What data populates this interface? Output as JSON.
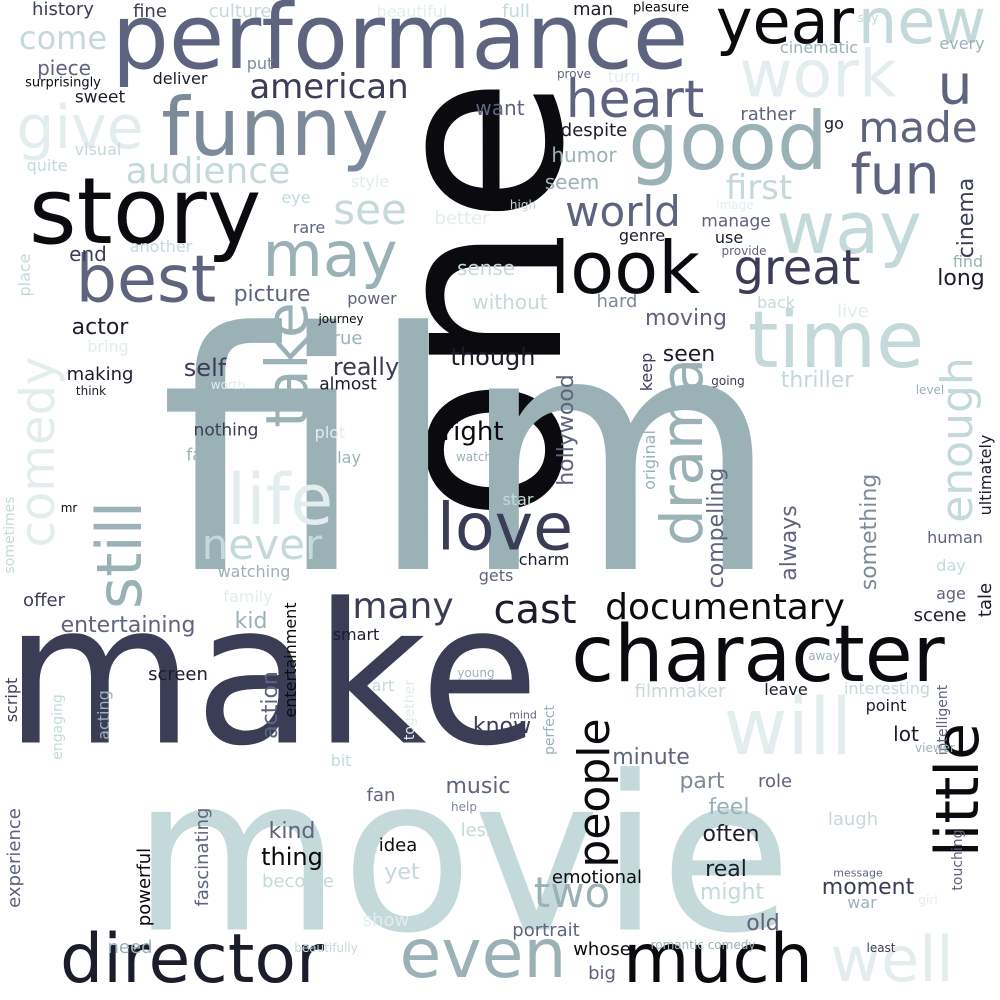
{
  "words": [
    "one",
    "film",
    "make",
    "movie",
    "performance",
    "character",
    "story",
    "funny",
    "best",
    "good",
    "way",
    "time",
    "look",
    "director",
    "much",
    "even",
    "well",
    "will",
    "little",
    "love",
    "drama",
    "life",
    "still",
    "take",
    "may",
    "give",
    "work",
    "new",
    "year",
    "u",
    "heart",
    "made",
    "fun",
    "great",
    "world",
    "documentary",
    "cast",
    "many",
    "people",
    "two",
    "comedy",
    "enough",
    "american",
    "audience",
    "come",
    "see",
    "first",
    "never",
    "right",
    "though",
    "actor",
    "self",
    "really",
    "picture",
    "moving",
    "seen",
    "thriller",
    "long",
    "cinema",
    "hollywood",
    "something",
    "compelling",
    "always",
    "entertaining",
    "kid",
    "action",
    "know",
    "minute",
    "music",
    "part",
    "role",
    "feel",
    "often",
    "kind",
    "thing",
    "real",
    "moment",
    "might",
    "old",
    "war",
    "whose",
    "big",
    "portrait",
    "emotional",
    "powerful",
    "fascinating",
    "experience",
    "idea",
    "yet",
    "fan",
    "less",
    "become",
    "show",
    "need",
    "history",
    "fine",
    "culture",
    "beautiful",
    "full",
    "man",
    "pleasure",
    "say",
    "piece",
    "deliver",
    "put",
    "cinematic",
    "every",
    "surprisingly",
    "sweet",
    "want",
    "prove",
    "turn",
    "despite",
    "rather",
    "go",
    "humor",
    "quite",
    "visual",
    "seem",
    "style",
    "eye",
    "better",
    "high",
    "manage",
    "rare",
    "genre",
    "use",
    "end",
    "another",
    "provide",
    "sense",
    "find",
    "without",
    "hard",
    "back",
    "place",
    "power",
    "journey",
    "live",
    "bring",
    "true",
    "keep",
    "making",
    "think",
    "almost",
    "worth",
    "going",
    "level",
    "plot",
    "nothing",
    "far",
    "play",
    "original",
    "watch",
    "star",
    "mr",
    "charm",
    "sometimes",
    "watching",
    "gets",
    "day",
    "family",
    "offer",
    "age",
    "tale",
    "ultimately",
    "human",
    "smart",
    "scene",
    "entertainment",
    "script",
    "screen",
    "young",
    "away",
    "art",
    "filmmaker",
    "leave",
    "interesting",
    "acting",
    "engaging",
    "together",
    "mind",
    "perfect",
    "point",
    "lot",
    "intelligent",
    "viewer",
    "bit",
    "help",
    "laugh",
    "touching",
    "message",
    "least",
    "romantic comedy",
    "beautifully",
    "image",
    "girl"
  ]
}
